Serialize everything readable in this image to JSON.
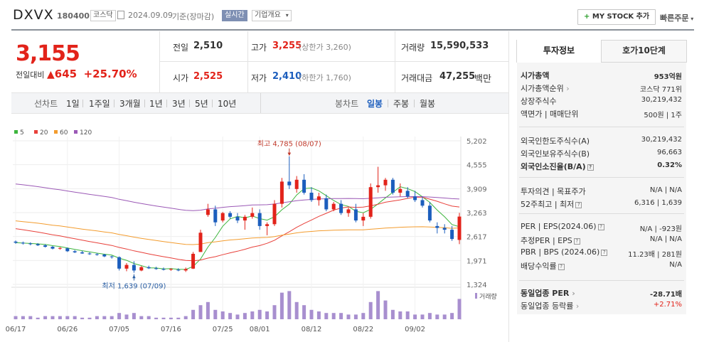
{
  "header": {
    "stock_name": "DXVX",
    "stock_code": "180400",
    "market_badge": "코스닥",
    "date_text": "2024.09.09",
    "basis_text": "기준(장마감)",
    "realtime_badge": "실시간",
    "company_info_label": "기업개요",
    "my_stock_button": "MY STOCK 추가",
    "quick_order_label": "빠른주문"
  },
  "price": {
    "current": "3,155",
    "change_label": "전일대비",
    "change_value": "645",
    "change_rate": "+25.70%"
  },
  "summary": {
    "prev_close_label": "전일",
    "prev_close": "2,510",
    "high_label": "고가",
    "high": "3,255",
    "upper_limit": "(상한가 3,260)",
    "volume_label": "거래량",
    "volume": "15,590,533",
    "open_label": "시가",
    "open": "2,525",
    "low_label": "저가",
    "low": "2,410",
    "lower_limit": "(하한가 1,760)",
    "amount_label": "거래대금",
    "amount": "47,255",
    "amount_unit": "백만"
  },
  "period_bar": {
    "line_chart_label": "선차트",
    "periods": [
      "1일",
      "1주일",
      "3개월",
      "1년",
      "3년",
      "5년",
      "10년"
    ],
    "candle_label": "봉차트",
    "candle_periods": [
      "일봉",
      "주봉",
      "월봉"
    ],
    "active_candle": "일봉"
  },
  "chart_data": {
    "type": "candlestick",
    "legend": [
      {
        "name": "5",
        "color": "#3db53d"
      },
      {
        "name": "20",
        "color": "#e8403a"
      },
      {
        "name": "60",
        "color": "#f39c2e"
      },
      {
        "name": "120",
        "color": "#9b59b6"
      }
    ],
    "y_ticks": [
      "5,202",
      "4,555",
      "3,909",
      "3,263",
      "2,617",
      "1,971",
      "1,324"
    ],
    "ylim": [
      1324,
      5202
    ],
    "x_ticks": [
      "06/17",
      "06/26",
      "07/05",
      "07/16",
      "07/25",
      "08/01",
      "08/12",
      "08/22",
      "09/02"
    ],
    "x_tick_index": [
      0,
      7,
      14,
      21,
      28,
      33,
      40,
      47,
      54
    ],
    "high_annotation": "최고 4,785 (08/07)",
    "low_annotation": "최저 1,639 (07/09)",
    "volume_label": "거래량",
    "up_color": "#e2231a",
    "down_color": "#1c5ebd",
    "volume_color": "#a88fcf",
    "candles": [
      {
        "o": 2480,
        "h": 2510,
        "l": 2420,
        "c": 2450
      },
      {
        "o": 2450,
        "h": 2480,
        "l": 2400,
        "c": 2430
      },
      {
        "o": 2430,
        "h": 2460,
        "l": 2380,
        "c": 2410
      },
      {
        "o": 2410,
        "h": 2440,
        "l": 2360,
        "c": 2380
      },
      {
        "o": 2380,
        "h": 2410,
        "l": 2320,
        "c": 2340
      },
      {
        "o": 2340,
        "h": 2360,
        "l": 2270,
        "c": 2290
      },
      {
        "o": 2290,
        "h": 2330,
        "l": 2260,
        "c": 2310
      },
      {
        "o": 2300,
        "h": 2320,
        "l": 2200,
        "c": 2220
      },
      {
        "o": 2220,
        "h": 2250,
        "l": 2170,
        "c": 2190
      },
      {
        "o": 2190,
        "h": 2230,
        "l": 2150,
        "c": 2160
      },
      {
        "o": 2160,
        "h": 2190,
        "l": 2120,
        "c": 2140
      },
      {
        "o": 2140,
        "h": 2170,
        "l": 2100,
        "c": 2130
      },
      {
        "o": 2130,
        "h": 2150,
        "l": 2060,
        "c": 2080
      },
      {
        "o": 2080,
        "h": 2100,
        "l": 2020,
        "c": 2060
      },
      {
        "o": 2060,
        "h": 2080,
        "l": 1700,
        "c": 1750
      },
      {
        "o": 1750,
        "h": 1900,
        "l": 1680,
        "c": 1850
      },
      {
        "o": 1850,
        "h": 1950,
        "l": 1639,
        "c": 1700
      },
      {
        "o": 1700,
        "h": 1820,
        "l": 1680,
        "c": 1790
      },
      {
        "o": 1790,
        "h": 1830,
        "l": 1740,
        "c": 1760
      },
      {
        "o": 1760,
        "h": 1800,
        "l": 1720,
        "c": 1740
      },
      {
        "o": 1740,
        "h": 1780,
        "l": 1700,
        "c": 1720
      },
      {
        "o": 1720,
        "h": 1760,
        "l": 1690,
        "c": 1740
      },
      {
        "o": 1720,
        "h": 1760,
        "l": 1680,
        "c": 1700
      },
      {
        "o": 1700,
        "h": 1780,
        "l": 1660,
        "c": 1740
      },
      {
        "o": 1750,
        "h": 2200,
        "l": 1740,
        "c": 2150
      },
      {
        "o": 2200,
        "h": 2800,
        "l": 2200,
        "c": 2720
      },
      {
        "o": 3200,
        "h": 3500,
        "l": 3150,
        "c": 3350
      },
      {
        "o": 3350,
        "h": 3450,
        "l": 2900,
        "c": 3000
      },
      {
        "o": 3050,
        "h": 3280,
        "l": 3000,
        "c": 3250
      },
      {
        "o": 3250,
        "h": 3300,
        "l": 3100,
        "c": 3150
      },
      {
        "o": 3150,
        "h": 3250,
        "l": 2980,
        "c": 3050
      },
      {
        "o": 3050,
        "h": 3200,
        "l": 2800,
        "c": 3150
      },
      {
        "o": 3150,
        "h": 3400,
        "l": 3100,
        "c": 3250
      },
      {
        "o": 3250,
        "h": 3350,
        "l": 2800,
        "c": 2900
      },
      {
        "o": 2900,
        "h": 3000,
        "l": 2650,
        "c": 2950
      },
      {
        "o": 2950,
        "h": 3600,
        "l": 2900,
        "c": 3500
      },
      {
        "o": 3500,
        "h": 4200,
        "l": 3400,
        "c": 4100
      },
      {
        "o": 4100,
        "h": 4785,
        "l": 3900,
        "c": 4000
      },
      {
        "o": 3900,
        "h": 4250,
        "l": 3800,
        "c": 4150
      },
      {
        "o": 4150,
        "h": 4300,
        "l": 3750,
        "c": 3800
      },
      {
        "o": 3800,
        "h": 3950,
        "l": 3550,
        "c": 3600
      },
      {
        "o": 3600,
        "h": 3800,
        "l": 3450,
        "c": 3700
      },
      {
        "o": 3650,
        "h": 3750,
        "l": 3300,
        "c": 3350
      },
      {
        "o": 3350,
        "h": 3550,
        "l": 3300,
        "c": 3500
      },
      {
        "o": 3500,
        "h": 3600,
        "l": 3200,
        "c": 3250
      },
      {
        "o": 3250,
        "h": 3400,
        "l": 3150,
        "c": 3350
      },
      {
        "o": 3350,
        "h": 3500,
        "l": 3000,
        "c": 3050
      },
      {
        "o": 3050,
        "h": 3250,
        "l": 2900,
        "c": 3150
      },
      {
        "o": 3150,
        "h": 4050,
        "l": 3100,
        "c": 3950
      },
      {
        "o": 3950,
        "h": 4500,
        "l": 3800,
        "c": 4000
      },
      {
        "o": 4000,
        "h": 4200,
        "l": 3850,
        "c": 4150
      },
      {
        "o": 4150,
        "h": 4200,
        "l": 3750,
        "c": 3800
      },
      {
        "o": 3800,
        "h": 4050,
        "l": 3700,
        "c": 3900
      },
      {
        "o": 3850,
        "h": 3950,
        "l": 3650,
        "c": 3700
      },
      {
        "o": 3700,
        "h": 3850,
        "l": 3550,
        "c": 3600
      },
      {
        "o": 3600,
        "h": 3700,
        "l": 3400,
        "c": 3450
      },
      {
        "o": 3450,
        "h": 3550,
        "l": 3000,
        "c": 3050
      },
      {
        "o": 2900,
        "h": 3000,
        "l": 2700,
        "c": 2850
      },
      {
        "o": 2850,
        "h": 2950,
        "l": 2700,
        "c": 2800
      },
      {
        "o": 2800,
        "h": 2900,
        "l": 2500,
        "c": 2550
      },
      {
        "o": 2525,
        "h": 3255,
        "l": 2410,
        "c": 3155
      }
    ],
    "volumes": [
      2,
      2,
      2,
      1,
      2,
      2,
      2,
      2,
      2,
      1,
      1,
      2,
      2,
      2,
      4,
      3,
      4,
      2,
      2,
      1,
      1,
      1,
      1,
      2,
      6,
      9,
      11,
      6,
      5,
      4,
      3,
      4,
      5,
      6,
      5,
      9,
      17,
      18,
      11,
      9,
      6,
      5,
      4,
      4,
      4,
      3,
      3,
      4,
      11,
      18,
      12,
      6,
      5,
      5,
      3,
      3,
      4,
      3,
      3,
      4,
      13
    ],
    "volume_max": 20
  },
  "right_panel": {
    "tabs": [
      "투자정보",
      "호가10단계"
    ],
    "active_tab": "투자정보",
    "group1": [
      {
        "label": "시가총액",
        "value": "953억원"
      },
      {
        "label": "시가총액순위",
        "value": "코스닥 771위"
      },
      {
        "label": "상장주식수",
        "value": "30,219,432"
      },
      {
        "label": "액면가 | 매매단위",
        "value": "500원 | 1주"
      }
    ],
    "group2": [
      {
        "label": "외국인한도주식수(A)",
        "value": "30,219,432"
      },
      {
        "label": "외국인보유주식수(B)",
        "value": "96,663"
      },
      {
        "label": "외국인소진율(B/A)",
        "value": "0.32%"
      }
    ],
    "group3": [
      {
        "label": "투자의견 | 목표주가",
        "value": "N/A | N/A"
      },
      {
        "label": "52주최고 | 최저",
        "value": "6,316 | 1,639"
      }
    ],
    "group4": [
      {
        "label": "PER | EPS(2024.06)",
        "value": "N/A | -923원"
      },
      {
        "label": "추정PER | EPS",
        "value": "N/A | N/A"
      },
      {
        "label": "PBR | BPS (2024.06)",
        "value": "11.23배 | 281원"
      },
      {
        "label": "배당수익률",
        "value": "N/A"
      }
    ],
    "group5": [
      {
        "label": "동일업종 PER",
        "value": "-28.71배"
      },
      {
        "label": "동일업종 등락률",
        "value": "+2.71%"
      }
    ]
  }
}
